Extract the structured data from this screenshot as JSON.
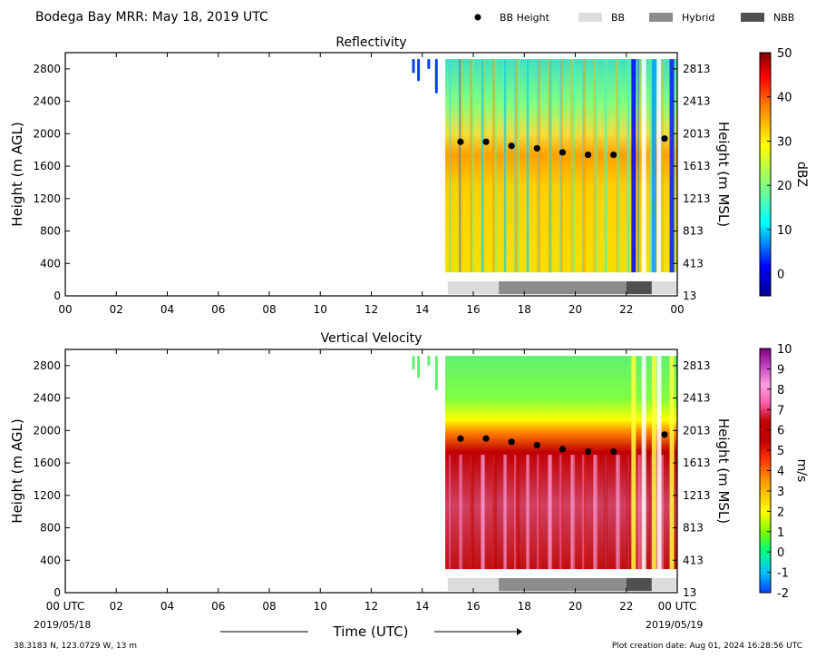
{
  "figure": {
    "title": "Bodega Bay MRR:  May 18, 2019 UTC",
    "legend": [
      {
        "label": "BB Height",
        "marker": "dot",
        "color": "#000000"
      },
      {
        "label": "BB",
        "marker": "box",
        "color": "#dcdcdc"
      },
      {
        "label": "Hybrid",
        "marker": "box",
        "color": "#8c8c8c"
      },
      {
        "label": "NBB",
        "marker": "box",
        "color": "#505050"
      }
    ],
    "xlabel": "Time (UTC)",
    "start_date": "2019/05/18",
    "end_date": "2019/05/19",
    "location": "38.3183 N, 123.0729 W, 13 m",
    "creation": "Plot creation date: Aug 01, 2024 16:28:56 UTC"
  },
  "chart_data": [
    {
      "type": "heatmap",
      "title": "Reflectivity",
      "ylabel": "Height (m AGL)",
      "ylabel_right": "Height (m MSL)",
      "xlim": [
        0,
        24
      ],
      "ylim": [
        0,
        3000
      ],
      "x_ticks": [
        "00",
        "02",
        "04",
        "06",
        "08",
        "10",
        "12",
        "14",
        "16",
        "18",
        "20",
        "22",
        "00"
      ],
      "y_ticks": [
        0,
        400,
        800,
        1200,
        1600,
        2000,
        2400,
        2800
      ],
      "y_ticks_right": [
        13,
        413,
        813,
        1213,
        1613,
        2013,
        2413,
        2813
      ],
      "data_start_hour": 14.9,
      "colorbar": {
        "label": "dBZ",
        "range": [
          -5,
          50
        ],
        "ticks": [
          0,
          10,
          20,
          30,
          40,
          50
        ],
        "colormap": [
          "#00008f",
          "#0000ff",
          "#00ffff",
          "#80ff80",
          "#ffff00",
          "#ff8000",
          "#ff0000",
          "#800000"
        ]
      },
      "bb_height": {
        "x": [
          15.5,
          16.5,
          17.5,
          18.5,
          19.5,
          20.5,
          21.5,
          23.5
        ],
        "y": [
          1900,
          1900,
          1850,
          1820,
          1770,
          1740,
          1740,
          1940
        ]
      },
      "bb_type": [
        {
          "start": 15.0,
          "end": 17.0,
          "type": "BB"
        },
        {
          "start": 17.0,
          "end": 22.0,
          "type": "Hybrid"
        },
        {
          "start": 22.0,
          "end": 23.0,
          "type": "NBB"
        },
        {
          "start": 23.0,
          "end": 24.0,
          "type": "BB"
        }
      ]
    },
    {
      "type": "heatmap",
      "title": "Vertical Velocity",
      "ylabel": "Height (m AGL)",
      "ylabel_right": "Height (m MSL)",
      "xlim": [
        0,
        24
      ],
      "ylim": [
        0,
        3000
      ],
      "x_ticks": [
        "00 UTC",
        "02",
        "04",
        "06",
        "08",
        "10",
        "12",
        "14",
        "16",
        "18",
        "20",
        "22",
        "00 UTC"
      ],
      "y_ticks": [
        0,
        400,
        800,
        1200,
        1600,
        2000,
        2400,
        2800
      ],
      "y_ticks_right": [
        13,
        413,
        813,
        1213,
        1613,
        2013,
        2413,
        2813
      ],
      "data_start_hour": 14.9,
      "colorbar": {
        "label": "m/s",
        "range": [
          -2,
          10
        ],
        "ticks": [
          -2,
          -1,
          0,
          1,
          2,
          3,
          4,
          5,
          6,
          7,
          8,
          9,
          10
        ],
        "colormap": [
          "#0040ff",
          "#00c0ff",
          "#00ff80",
          "#80ff00",
          "#ffff00",
          "#ffa000",
          "#ff3000",
          "#c00000",
          "#c00000",
          "#ff60b0",
          "#ffa0e0",
          "#c040c0",
          "#800080"
        ]
      },
      "bb_height": {
        "x": [
          15.5,
          16.5,
          17.5,
          18.5,
          19.5,
          20.5,
          21.5,
          23.5
        ],
        "y": [
          1900,
          1900,
          1860,
          1820,
          1770,
          1740,
          1740,
          1950
        ]
      },
      "bb_type": [
        {
          "start": 15.0,
          "end": 17.0,
          "type": "BB"
        },
        {
          "start": 17.0,
          "end": 22.0,
          "type": "Hybrid"
        },
        {
          "start": 22.0,
          "end": 23.0,
          "type": "NBB"
        },
        {
          "start": 23.0,
          "end": 24.0,
          "type": "BB"
        }
      ]
    }
  ]
}
